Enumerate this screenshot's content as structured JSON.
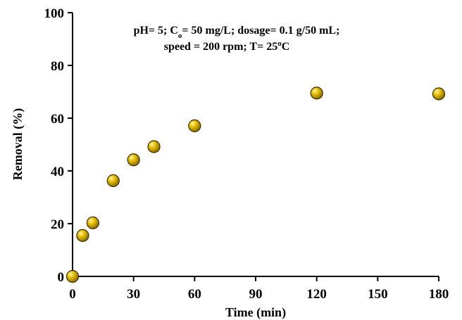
{
  "chart_data": {
    "type": "scatter",
    "xlabel": "Time (min)",
    "ylabel": "Removal (%)",
    "xlim": [
      0,
      180
    ],
    "ylim": [
      0,
      100
    ],
    "xticks": [
      0,
      30,
      60,
      90,
      120,
      150,
      180
    ],
    "yticks": [
      0,
      20,
      40,
      60,
      80,
      100
    ],
    "grid": false,
    "annotation": {
      "line1_part1": "pH= 5; C",
      "line1_sub": "o",
      "line1_part2": "= 50 mg/L; dosage= 0.1 g/50 mL;",
      "line2_part1": "speed = 200 rpm; T= 25",
      "line2_deg": "o",
      "line2_part2": "C"
    },
    "marker_color": "#d4a800",
    "series": [
      {
        "x": [
          0,
          5,
          10,
          20,
          30,
          40,
          60,
          120,
          180
        ],
        "y": [
          0,
          15.5,
          20.3,
          36.3,
          44.2,
          49.2,
          57.1,
          69.5,
          69.2
        ]
      }
    ]
  }
}
